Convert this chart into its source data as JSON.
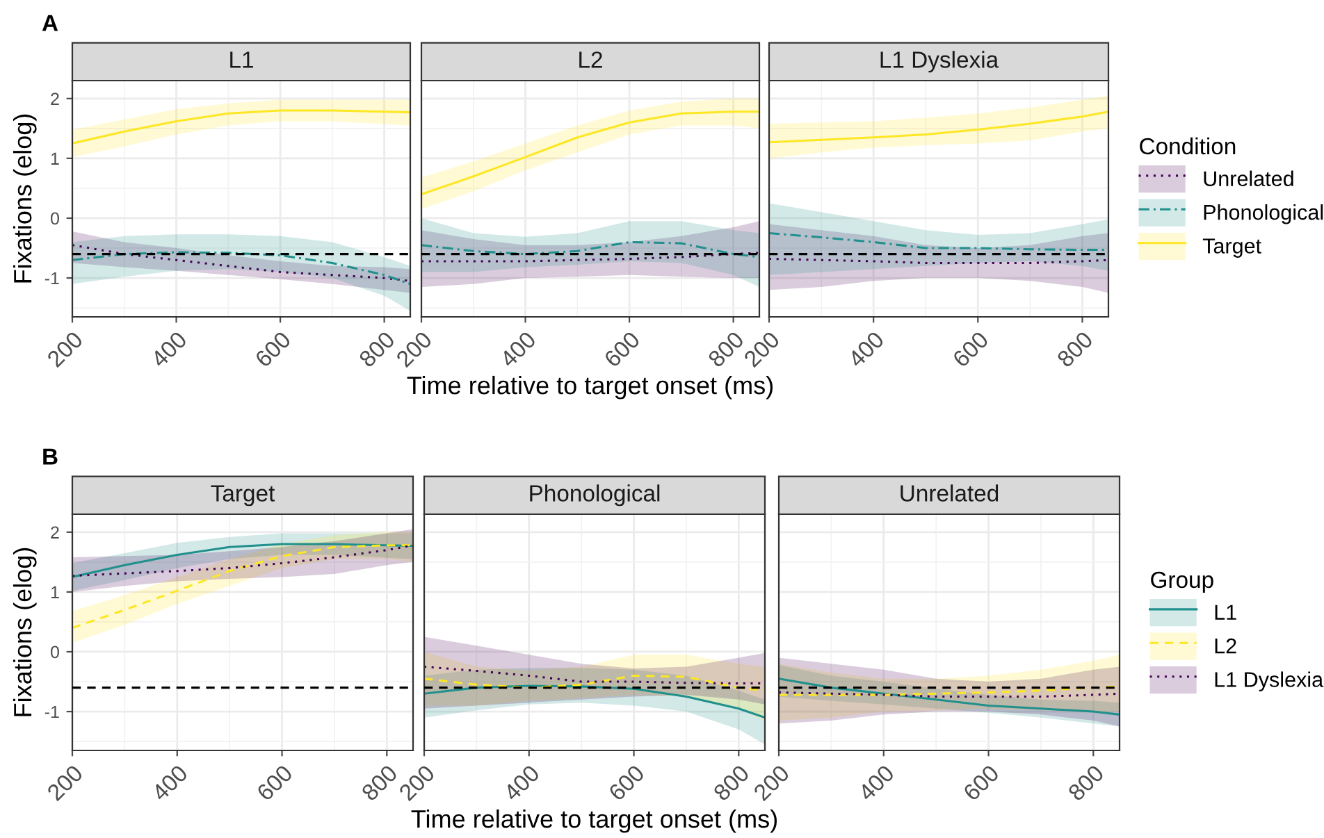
{
  "chart_data": [
    {
      "type": "line",
      "title": "L1",
      "ylabel": "Fixations (elog)",
      "legend_title": "Condition",
      "annotations": [
        "A"
      ],
      "xlim": [
        200,
        850
      ],
      "ylim": [
        -1.65,
        2.3
      ],
      "xticks": [
        200,
        400,
        600,
        800
      ],
      "yticks": [
        -1,
        0,
        1,
        2
      ],
      "grid": true,
      "legend": "right",
      "ref_lines": [
        {
          "axis": "y",
          "value": -0.6,
          "color": "#000000",
          "line_style": "dashed"
        }
      ],
      "series": [
        {
          "name": "Unrelated",
          "color": "#440154",
          "line_style": "dotted",
          "x": [
            200,
            300,
            400,
            500,
            600,
            700,
            800,
            850
          ],
          "values": [
            -0.45,
            -0.6,
            -0.7,
            -0.8,
            -0.9,
            -0.95,
            -1.0,
            -1.05
          ],
          "lower": [
            -0.75,
            -0.82,
            -0.88,
            -0.95,
            -1.02,
            -1.1,
            -1.2,
            -1.25
          ],
          "upper": [
            -0.22,
            -0.4,
            -0.5,
            -0.62,
            -0.72,
            -0.8,
            -0.82,
            -0.85
          ]
        },
        {
          "name": "Phonological",
          "color": "#21908C",
          "line_style": "dashdot",
          "x": [
            200,
            300,
            400,
            500,
            600,
            700,
            800,
            850
          ],
          "values": [
            -0.7,
            -0.6,
            -0.57,
            -0.58,
            -0.62,
            -0.75,
            -0.95,
            -1.1
          ],
          "lower": [
            -1.1,
            -0.98,
            -0.88,
            -0.85,
            -0.9,
            -1.0,
            -1.3,
            -1.55
          ],
          "upper": [
            -0.4,
            -0.3,
            -0.27,
            -0.27,
            -0.3,
            -0.4,
            -0.65,
            -0.8
          ]
        },
        {
          "name": "Target",
          "color": "#FDE725",
          "line_style": "solid",
          "x": [
            200,
            300,
            400,
            500,
            600,
            700,
            800,
            850
          ],
          "values": [
            1.25,
            1.45,
            1.62,
            1.75,
            1.8,
            1.8,
            1.78,
            1.77
          ],
          "lower": [
            1.02,
            1.2,
            1.4,
            1.55,
            1.62,
            1.62,
            1.57,
            1.55
          ],
          "upper": [
            1.48,
            1.65,
            1.82,
            1.92,
            1.98,
            1.98,
            1.98,
            1.98
          ]
        }
      ]
    },
    {
      "type": "line",
      "title": "L2",
      "xlabel": "Time relative to target onset (ms)",
      "xlim": [
        200,
        850
      ],
      "ylim": [
        -1.65,
        2.3
      ],
      "xticks": [
        200,
        400,
        600,
        800
      ],
      "yticks": [
        -1,
        0,
        1,
        2
      ],
      "tick_labels": "x",
      "grid": true,
      "legend": false,
      "ref_lines": [
        {
          "axis": "y",
          "value": -0.6,
          "color": "#000000",
          "line_style": "dashed"
        }
      ],
      "series": [
        {
          "color": "#440154",
          "line_style": "dotted",
          "x": [
            200,
            300,
            400,
            500,
            600,
            700,
            800,
            850
          ],
          "values": [
            -0.72,
            -0.72,
            -0.72,
            -0.7,
            -0.68,
            -0.65,
            -0.6,
            -0.58
          ],
          "lower": [
            -1.15,
            -1.1,
            -1.0,
            -0.98,
            -0.95,
            -0.98,
            -1.0,
            -1.0
          ],
          "upper": [
            -0.2,
            -0.35,
            -0.45,
            -0.45,
            -0.4,
            -0.3,
            -0.15,
            -0.05
          ]
        },
        {
          "color": "#21908C",
          "line_style": "dashdot",
          "x": [
            200,
            300,
            400,
            500,
            600,
            700,
            800,
            850
          ],
          "values": [
            -0.45,
            -0.55,
            -0.6,
            -0.55,
            -0.4,
            -0.42,
            -0.6,
            -0.65
          ],
          "lower": [
            -0.9,
            -0.9,
            -0.82,
            -0.78,
            -0.72,
            -0.75,
            -0.95,
            -1.15
          ],
          "upper": [
            0.0,
            -0.25,
            -0.31,
            -0.25,
            -0.05,
            -0.05,
            -0.2,
            -0.25
          ]
        },
        {
          "color": "#FDE725",
          "line_style": "solid",
          "x": [
            200,
            300,
            400,
            500,
            600,
            700,
            800,
            850
          ],
          "values": [
            0.4,
            0.7,
            1.02,
            1.35,
            1.6,
            1.75,
            1.78,
            1.78
          ],
          "lower": [
            0.15,
            0.45,
            0.8,
            1.1,
            1.4,
            1.55,
            1.55,
            1.5
          ],
          "upper": [
            0.68,
            0.95,
            1.25,
            1.55,
            1.8,
            1.95,
            2.0,
            2.0
          ]
        }
      ]
    },
    {
      "type": "line",
      "title": "L1 Dyslexia",
      "xlim": [
        200,
        850
      ],
      "ylim": [
        -1.65,
        2.3
      ],
      "xticks": [
        200,
        400,
        600,
        800
      ],
      "yticks": [
        -1,
        0,
        1,
        2
      ],
      "tick_labels": "x",
      "grid": true,
      "legend": false,
      "ref_lines": [
        {
          "axis": "y",
          "value": -0.6,
          "color": "#000000",
          "line_style": "dashed"
        }
      ],
      "series": [
        {
          "color": "#440154",
          "line_style": "dotted",
          "x": [
            200,
            300,
            400,
            500,
            600,
            700,
            800,
            850
          ],
          "values": [
            -0.68,
            -0.7,
            -0.72,
            -0.75,
            -0.75,
            -0.75,
            -0.72,
            -0.7
          ],
          "lower": [
            -1.2,
            -1.15,
            -1.05,
            -1.0,
            -1.0,
            -1.05,
            -1.15,
            -1.25
          ],
          "upper": [
            -0.1,
            -0.2,
            -0.3,
            -0.45,
            -0.5,
            -0.45,
            -0.3,
            -0.25
          ]
        },
        {
          "color": "#21908C",
          "line_style": "dashdot",
          "x": [
            200,
            300,
            400,
            500,
            600,
            700,
            800,
            850
          ],
          "values": [
            -0.25,
            -0.32,
            -0.4,
            -0.5,
            -0.5,
            -0.52,
            -0.53,
            -0.53
          ],
          "lower": [
            -0.95,
            -0.9,
            -0.85,
            -0.8,
            -0.75,
            -0.72,
            -0.8,
            -0.88
          ],
          "upper": [
            0.25,
            0.1,
            -0.05,
            -0.2,
            -0.28,
            -0.25,
            -0.1,
            -0.02
          ]
        },
        {
          "color": "#FDE725",
          "line_style": "solid",
          "x": [
            200,
            300,
            400,
            500,
            600,
            700,
            800,
            850
          ],
          "values": [
            1.27,
            1.31,
            1.35,
            1.4,
            1.48,
            1.58,
            1.7,
            1.78
          ],
          "lower": [
            1.0,
            1.1,
            1.18,
            1.22,
            1.25,
            1.3,
            1.45,
            1.5
          ],
          "upper": [
            1.58,
            1.6,
            1.62,
            1.68,
            1.75,
            1.85,
            1.98,
            2.05
          ]
        }
      ]
    },
    {
      "type": "line",
      "title": "Target",
      "ylabel": "Fixations (elog)",
      "legend_title": "Group",
      "annotations": [
        "B"
      ],
      "xlim": [
        200,
        850
      ],
      "ylim": [
        -1.65,
        2.3
      ],
      "xticks": [
        200,
        400,
        600,
        800
      ],
      "yticks": [
        -1,
        0,
        1,
        2
      ],
      "grid": true,
      "legend": "right",
      "ref_lines": [
        {
          "axis": "y",
          "value": -0.6,
          "color": "#000000",
          "line_style": "dashed"
        }
      ],
      "series": [
        {
          "name": "L1",
          "color": "#21908C",
          "line_style": "solid",
          "x": [
            200,
            300,
            400,
            500,
            600,
            700,
            800,
            850
          ],
          "values": [
            1.25,
            1.45,
            1.62,
            1.75,
            1.8,
            1.8,
            1.78,
            1.77
          ],
          "lower": [
            1.02,
            1.2,
            1.4,
            1.55,
            1.62,
            1.62,
            1.57,
            1.55
          ],
          "upper": [
            1.48,
            1.65,
            1.82,
            1.92,
            1.98,
            1.98,
            1.98,
            1.98
          ]
        },
        {
          "name": "L2",
          "color": "#FDE725",
          "line_style": "dashed",
          "x": [
            200,
            300,
            400,
            500,
            600,
            700,
            800,
            850
          ],
          "values": [
            0.4,
            0.7,
            1.02,
            1.35,
            1.6,
            1.75,
            1.78,
            1.78
          ],
          "lower": [
            0.15,
            0.45,
            0.8,
            1.1,
            1.4,
            1.55,
            1.55,
            1.5
          ],
          "upper": [
            0.68,
            0.95,
            1.25,
            1.55,
            1.8,
            1.95,
            2.0,
            2.0
          ]
        },
        {
          "name": "L1 Dyslexia",
          "color": "#440154",
          "line_style": "dotted",
          "x": [
            200,
            300,
            400,
            500,
            600,
            700,
            800,
            850
          ],
          "values": [
            1.27,
            1.31,
            1.35,
            1.4,
            1.48,
            1.58,
            1.7,
            1.78
          ],
          "lower": [
            1.0,
            1.1,
            1.18,
            1.22,
            1.25,
            1.3,
            1.45,
            1.5
          ],
          "upper": [
            1.58,
            1.6,
            1.62,
            1.68,
            1.75,
            1.85,
            1.98,
            2.05
          ]
        }
      ]
    },
    {
      "type": "line",
      "title": "Phonological",
      "xlabel": "Time relative to target onset (ms)",
      "xlim": [
        200,
        850
      ],
      "ylim": [
        -1.65,
        2.3
      ],
      "xticks": [
        200,
        400,
        600,
        800
      ],
      "yticks": [
        -1,
        0,
        1,
        2
      ],
      "tick_labels": "x",
      "grid": true,
      "legend": false,
      "ref_lines": [
        {
          "axis": "y",
          "value": -0.6,
          "color": "#000000",
          "line_style": "dashed"
        }
      ],
      "series": [
        {
          "color": "#21908C",
          "line_style": "solid",
          "x": [
            200,
            300,
            400,
            500,
            600,
            700,
            800,
            850
          ],
          "values": [
            -0.7,
            -0.6,
            -0.57,
            -0.58,
            -0.62,
            -0.75,
            -0.95,
            -1.1
          ],
          "lower": [
            -1.1,
            -0.98,
            -0.88,
            -0.85,
            -0.9,
            -1.0,
            -1.3,
            -1.55
          ],
          "upper": [
            -0.4,
            -0.3,
            -0.27,
            -0.27,
            -0.3,
            -0.4,
            -0.65,
            -0.8
          ]
        },
        {
          "color": "#FDE725",
          "line_style": "dashed",
          "x": [
            200,
            300,
            400,
            500,
            600,
            700,
            800,
            850
          ],
          "values": [
            -0.45,
            -0.55,
            -0.6,
            -0.55,
            -0.4,
            -0.42,
            -0.6,
            -0.65
          ],
          "lower": [
            -0.9,
            -0.9,
            -0.82,
            -0.78,
            -0.72,
            -0.75,
            -0.95,
            -1.15
          ],
          "upper": [
            0.0,
            -0.25,
            -0.31,
            -0.25,
            -0.05,
            -0.05,
            -0.2,
            -0.25
          ]
        },
        {
          "color": "#440154",
          "line_style": "dotted",
          "x": [
            200,
            300,
            400,
            500,
            600,
            700,
            800,
            850
          ],
          "values": [
            -0.25,
            -0.32,
            -0.4,
            -0.5,
            -0.5,
            -0.52,
            -0.53,
            -0.53
          ],
          "lower": [
            -0.95,
            -0.9,
            -0.85,
            -0.8,
            -0.75,
            -0.72,
            -0.8,
            -0.88
          ],
          "upper": [
            0.25,
            0.1,
            -0.05,
            -0.2,
            -0.28,
            -0.25,
            -0.1,
            -0.02
          ]
        }
      ]
    },
    {
      "type": "line",
      "title": "Unrelated",
      "xlim": [
        200,
        850
      ],
      "ylim": [
        -1.65,
        2.3
      ],
      "xticks": [
        200,
        400,
        600,
        800
      ],
      "yticks": [
        -1,
        0,
        1,
        2
      ],
      "tick_labels": "x",
      "grid": true,
      "legend": false,
      "ref_lines": [
        {
          "axis": "y",
          "value": -0.6,
          "color": "#000000",
          "line_style": "dashed"
        }
      ],
      "series": [
        {
          "color": "#21908C",
          "line_style": "solid",
          "x": [
            200,
            300,
            400,
            500,
            600,
            700,
            800,
            850
          ],
          "values": [
            -0.45,
            -0.6,
            -0.7,
            -0.8,
            -0.9,
            -0.95,
            -1.0,
            -1.05
          ],
          "lower": [
            -0.75,
            -0.82,
            -0.88,
            -0.95,
            -1.02,
            -1.1,
            -1.2,
            -1.25
          ],
          "upper": [
            -0.22,
            -0.4,
            -0.5,
            -0.62,
            -0.72,
            -0.8,
            -0.82,
            -0.85
          ]
        },
        {
          "color": "#FDE725",
          "line_style": "dashed",
          "x": [
            200,
            300,
            400,
            500,
            600,
            700,
            800,
            850
          ],
          "values": [
            -0.72,
            -0.72,
            -0.72,
            -0.7,
            -0.68,
            -0.65,
            -0.6,
            -0.58
          ],
          "lower": [
            -1.15,
            -1.1,
            -1.0,
            -0.98,
            -0.95,
            -0.98,
            -1.0,
            -1.0
          ],
          "upper": [
            -0.2,
            -0.35,
            -0.45,
            -0.45,
            -0.4,
            -0.3,
            -0.15,
            -0.05
          ]
        },
        {
          "color": "#440154",
          "line_style": "dotted",
          "x": [
            200,
            300,
            400,
            500,
            600,
            700,
            800,
            850
          ],
          "values": [
            -0.68,
            -0.7,
            -0.72,
            -0.75,
            -0.75,
            -0.75,
            -0.72,
            -0.7
          ],
          "lower": [
            -1.2,
            -1.15,
            -1.05,
            -1.0,
            -1.0,
            -1.05,
            -1.15,
            -1.25
          ],
          "upper": [
            -0.1,
            -0.2,
            -0.3,
            -0.45,
            -0.5,
            -0.45,
            -0.3,
            -0.25
          ]
        }
      ]
    }
  ]
}
